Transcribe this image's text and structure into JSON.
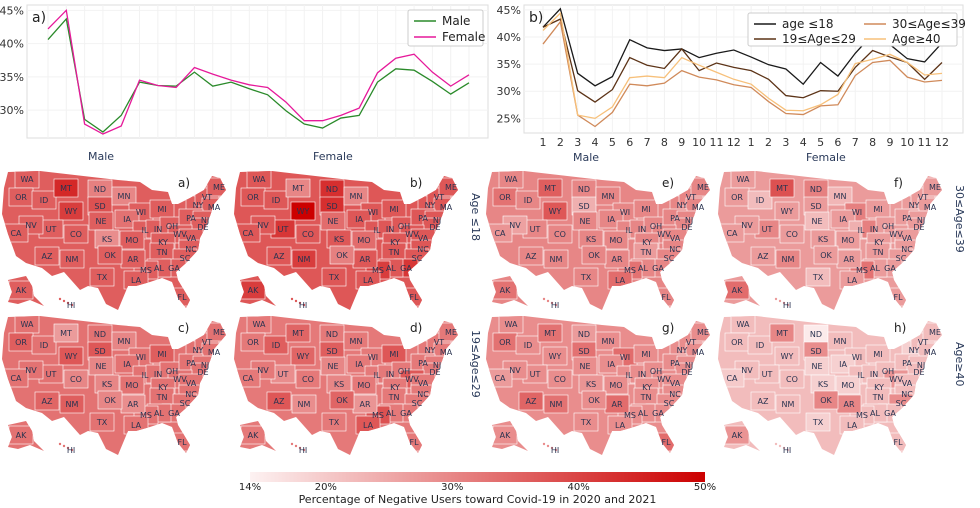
{
  "chart_data": [
    {
      "type": "line",
      "panel_label": "a)",
      "ytick_labels": [
        "45%",
        "40%",
        "35%",
        "30%"
      ],
      "ytick_values": [
        45,
        40,
        35,
        30
      ],
      "ylim": [
        25.8,
        45.8
      ],
      "grid": true,
      "legend_position": "top-right",
      "series": [
        {
          "name": "Male",
          "color": "#2a8a2a",
          "values": [
            40.6,
            43.7,
            28.6,
            26.7,
            29.2,
            34.2,
            33.7,
            33.6,
            35.7,
            33.6,
            34.2,
            33.2,
            32.3,
            29.9,
            27.9,
            27.3,
            28.8,
            29.2,
            34.2,
            36.2,
            36.0,
            34.3,
            32.4,
            34.1
          ]
        },
        {
          "name": "Female",
          "color": "#e6199a",
          "values": [
            42.2,
            45.0,
            27.9,
            26.4,
            27.6,
            34.5,
            33.7,
            33.4,
            36.4,
            35.4,
            34.5,
            33.8,
            33.4,
            31.2,
            28.4,
            28.4,
            29.2,
            30.3,
            35.6,
            37.8,
            38.4,
            35.7,
            33.6,
            35.3
          ]
        }
      ]
    },
    {
      "type": "line",
      "panel_label": "b)",
      "x_tick_labels": [
        "1",
        "2",
        "3",
        "4",
        "5",
        "6",
        "7",
        "8",
        "9",
        "10",
        "11",
        "12",
        "1",
        "2",
        "3",
        "4",
        "5",
        "6",
        "7",
        "8",
        "9",
        "10",
        "11",
        "12"
      ],
      "group_labels": [
        "Male",
        "Female"
      ],
      "ytick_labels": [
        "45%",
        "40%",
        "35%",
        "30%",
        "25%"
      ],
      "ytick_values": [
        45,
        40,
        35,
        30,
        25
      ],
      "ylim": [
        22.3,
        45.9
      ],
      "grid": true,
      "legend_position": "top-right",
      "series": [
        {
          "name": "age ≤18",
          "color": "#1a1a1a",
          "values": [
            41.8,
            45.2,
            33.3,
            31.0,
            32.7,
            39.5,
            38.0,
            37.5,
            37.8,
            36.2,
            37.0,
            37.6,
            36.3,
            34.9,
            34.1,
            31.3,
            35.3,
            32.8,
            37.0,
            40.5,
            38.6,
            36.0,
            35.4,
            38.9
          ]
        },
        {
          "name": "19≤Age≤29",
          "color": "#5c3317",
          "values": [
            41.8,
            43.3,
            30.1,
            28.0,
            30.3,
            36.2,
            34.8,
            34.2,
            37.8,
            33.8,
            35.2,
            34.4,
            33.8,
            32.2,
            29.2,
            28.8,
            30.1,
            30.0,
            34.4,
            37.5,
            36.3,
            35.3,
            32.2,
            35.3
          ]
        },
        {
          "name": "30≤Age≤39",
          "color": "#d08a5a",
          "values": [
            38.7,
            42.8,
            25.6,
            23.5,
            26.1,
            31.3,
            31.0,
            31.5,
            33.8,
            32.6,
            32.1,
            31.2,
            30.7,
            28.1,
            25.9,
            25.7,
            27.3,
            27.5,
            32.9,
            35.3,
            35.7,
            32.6,
            31.7,
            32.0
          ]
        },
        {
          "name": "Age≥40",
          "color": "#f7c07a",
          "values": [
            41.2,
            44.4,
            25.6,
            25.0,
            27.1,
            32.5,
            32.8,
            32.5,
            36.2,
            34.8,
            33.5,
            32.2,
            31.3,
            28.7,
            26.5,
            26.4,
            27.5,
            29.4,
            35.1,
            35.9,
            36.8,
            35.3,
            33.0,
            33.3
          ]
        }
      ]
    },
    {
      "type": "choropleth",
      "column_headers": [
        "Male",
        "Female"
      ],
      "row_labels": {
        "left_top": "Age ≤18",
        "left_bottom": "19≤Age≤29",
        "right_top": "30≤Age≤39",
        "right_bottom": "Age≥40"
      },
      "states": [
        "WA",
        "OR",
        "ID",
        "MT",
        "WY",
        "ND",
        "SD",
        "MN",
        "WI",
        "MI",
        "NE",
        "IA",
        "IL",
        "IN",
        "OH",
        "NY",
        "VT",
        "ME",
        "MA",
        "PA",
        "NJ",
        "DE",
        "WV",
        "VA",
        "KY",
        "NC",
        "TN",
        "SC",
        "GA",
        "AL",
        "MS",
        "LA",
        "AR",
        "MO",
        "KS",
        "OK",
        "TX",
        "NM",
        "AZ",
        "CO",
        "UT",
        "NV",
        "CA",
        "FL",
        "AK",
        "HI"
      ],
      "panels": [
        {
          "label": "a)",
          "gender": "Male",
          "age": "Age ≤18",
          "base": 36,
          "values": {
            "MT": 44,
            "WY": 41,
            "ND": 31,
            "MN": 30,
            "KS": 29,
            "IA": 33,
            "SD": 38
          }
        },
        {
          "label": "b)",
          "gender": "Female",
          "age": "Age ≤18",
          "base": 37,
          "values": {
            "WY": 50,
            "ND": 43,
            "SD": 43,
            "MT": 30,
            "MN": 30,
            "UT": 42,
            "NM": 41,
            "AK": 41,
            "GA": 42,
            "MS": 41,
            "OK": 31,
            "NE": 34,
            "MO": 34
          }
        },
        {
          "label": "c)",
          "gender": "Male",
          "age": "19≤Age≤29",
          "base": 33,
          "values": {
            "MT": 27,
            "WY": 37,
            "SD": 37,
            "OR": 36,
            "MI": 36,
            "AZ": 35,
            "NM": 36,
            "CO": 30,
            "NE": 30,
            "KS": 30,
            "OK": 30,
            "AR": 29,
            "MN": 30
          }
        },
        {
          "label": "d)",
          "gender": "Female",
          "age": "19≤Age≤29",
          "base": 32,
          "values": {
            "MT": 35,
            "ID": 36,
            "WY": 35,
            "SD": 36,
            "AZ": 37,
            "MI": 37,
            "MS": 38,
            "LA": 37,
            "OK": 35,
            "NM": 29,
            "UT": 29,
            "AR": 28,
            "KS": 30,
            "NE": 30,
            "WV": 37
          }
        },
        {
          "label": "e)",
          "gender": "Male",
          "age": "30≤Age≤39",
          "base": 30,
          "values": {
            "MT": 36,
            "WY": 37,
            "SD": 24,
            "OR": 33,
            "AK": 33,
            "LA": 34,
            "MS": 33,
            "TN": 27,
            "NV": 26,
            "CA": 28
          }
        },
        {
          "label": "f)",
          "gender": "Female",
          "age": "30≤Age≤39",
          "base": 27,
          "values": {
            "MT": 38,
            "ID": 22,
            "MN": 23,
            "NE": 22,
            "TX": 22,
            "IL": 24,
            "WI": 31,
            "UT": 30,
            "NM": 30,
            "AK": 34,
            "MS": 33,
            "IN": 31,
            "ND": 31
          }
        },
        {
          "label": "g)",
          "gender": "Male",
          "age": "Age≥40",
          "base": 29,
          "values": {
            "MT": 33,
            "AZ": 35,
            "NM": 33,
            "WI": 34,
            "AR": 34,
            "FL": 34,
            "OR": 33,
            "SD": 33,
            "ND": 27,
            "CA": 27,
            "KS": 28
          }
        },
        {
          "label": "h)",
          "gender": "Female",
          "age": "Age≥40",
          "base": 22,
          "values": {
            "MT": 30,
            "ND": 15,
            "SD": 29,
            "OK": 30,
            "AR": 30,
            "SC": 29,
            "WV": 28,
            "AK": 28,
            "TX": 19,
            "CA": 20,
            "NE": 19,
            "KS": 19,
            "IA": 19,
            "MO": 19,
            "NY": 19
          }
        }
      ],
      "colorbar": {
        "min": 14,
        "max": 50,
        "tick_values": [
          14,
          20,
          30,
          40,
          50
        ],
        "tick_labels": [
          "14%",
          "20%",
          "30%",
          "40%",
          "50%"
        ],
        "title": "Percentage of Negative Users toward Covid-19 in 2020 and 2021",
        "low_color": "#fdf2f2",
        "high_color": "#cc0000"
      }
    }
  ]
}
